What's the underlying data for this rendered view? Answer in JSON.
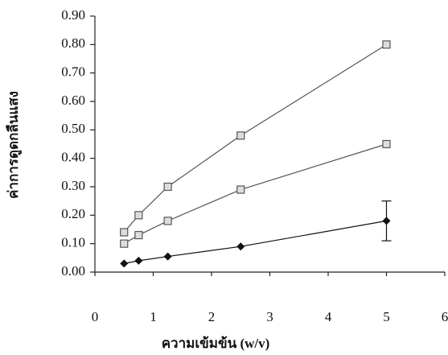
{
  "chart_data": {
    "type": "line",
    "x_label": "ความเข้มข้น (w/v)",
    "y_label": "ค่าการดูดกลืนแสง",
    "xlim": [
      0,
      6
    ],
    "xticks": [
      0,
      1,
      2,
      3,
      4,
      5,
      6
    ],
    "ylim": [
      0,
      0.9
    ],
    "yticks": [
      {
        "value": 0,
        "label": "0.00"
      },
      {
        "value": 0.1,
        "label": "0.10"
      },
      {
        "value": 0.2,
        "label": "0.20"
      },
      {
        "value": 0.3,
        "label": "0.30"
      },
      {
        "value": 0.4,
        "label": "0.40"
      },
      {
        "value": 0.5,
        "label": "0.50"
      },
      {
        "value": 0.6,
        "label": "0.60"
      },
      {
        "value": 0.7,
        "label": "0.70"
      },
      {
        "value": 0.8,
        "label": "0.80"
      },
      {
        "value": 0.9,
        "label": "0.90"
      }
    ],
    "grid": false,
    "series": [
      {
        "color": "#555555",
        "marker": "square",
        "x": [
          0.5,
          0.75,
          1.25,
          2.5,
          5
        ],
        "values": [
          0.14,
          0.2,
          0.3,
          0.48,
          0.8
        ]
      },
      {
        "color": "#555555",
        "marker": "square",
        "x": [
          0.5,
          0.75,
          1.25,
          2.5,
          5
        ],
        "values": [
          0.1,
          0.13,
          0.18,
          0.29,
          0.45
        ]
      },
      {
        "color": "#111111",
        "marker": "diamond",
        "x": [
          0.5,
          0.75,
          1.25,
          2.5,
          5
        ],
        "values": [
          0.03,
          0.04,
          0.055,
          0.09,
          0.18
        ],
        "errors": [
          null,
          null,
          null,
          null,
          0.07
        ]
      }
    ]
  }
}
